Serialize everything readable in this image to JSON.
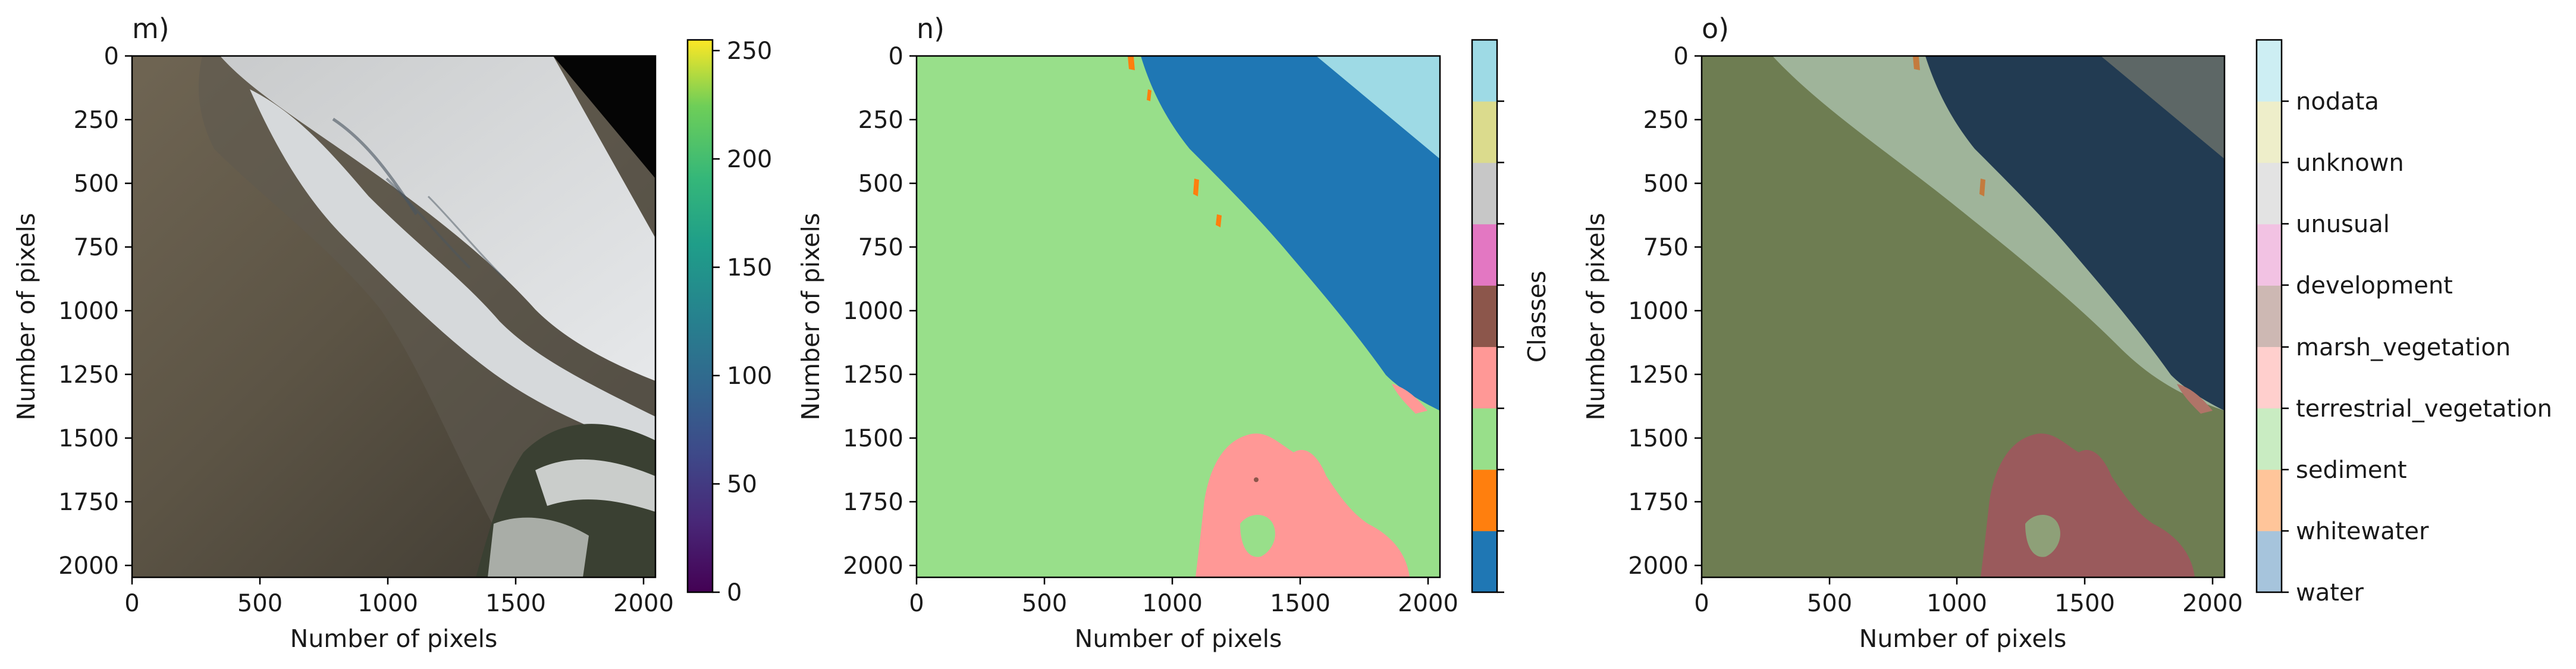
{
  "figure": {
    "panels": [
      {
        "title": "m)",
        "xlabel": "Number of pixels",
        "ylabel": "Number of pixels",
        "xticks": [
          "0",
          "500",
          "1000",
          "1500",
          "2000"
        ],
        "yticks": [
          "0",
          "250",
          "500",
          "750",
          "1000",
          "1250",
          "1500",
          "1750",
          "2000"
        ]
      },
      {
        "title": "n)",
        "xlabel": "Number of pixels",
        "ylabel": "Number of pixels",
        "xticks": [
          "0",
          "500",
          "1000",
          "1500",
          "2000"
        ],
        "yticks": [
          "0",
          "250",
          "500",
          "750",
          "1000",
          "1250",
          "1500",
          "1750",
          "2000"
        ]
      },
      {
        "title": "o)",
        "xlabel": "Number of pixels",
        "ylabel": "Number of pixels",
        "xticks": [
          "0",
          "500",
          "1000",
          "1500",
          "2000"
        ],
        "yticks": [
          "0",
          "250",
          "500",
          "750",
          "1000",
          "1250",
          "1500",
          "1750",
          "2000"
        ]
      }
    ],
    "colorbar_m": {
      "ticks": [
        "0",
        "50",
        "100",
        "150",
        "200",
        "250"
      ]
    },
    "colorbar_n": {
      "label": "Classes"
    },
    "colorbar_o": {
      "labels": [
        "water",
        "whitewater",
        "sediment",
        "terrestrial_vegetation",
        "marsh_vegetation",
        "development",
        "unusual",
        "unknown",
        "nodata"
      ]
    }
  },
  "chart_data": [
    {
      "type": "heatmap",
      "title": "m)",
      "content": "RGB image",
      "xlabel": "Number of pixels",
      "ylabel": "Number of pixels",
      "xlim": [
        0,
        2048
      ],
      "ylim": [
        2048,
        0
      ],
      "xticks": [
        0,
        500,
        1000,
        1500,
        2000
      ],
      "yticks": [
        0,
        250,
        500,
        750,
        1000,
        1250,
        1500,
        1750,
        2000
      ],
      "colorbar": {
        "colormap": "viridis",
        "range": [
          0,
          255
        ],
        "ticks": [
          0,
          50,
          100,
          150,
          200,
          250
        ]
      }
    },
    {
      "type": "heatmap",
      "title": "n)",
      "content": "class label map",
      "xlabel": "Number of pixels",
      "ylabel": "Number of pixels",
      "xlim": [
        0,
        2048
      ],
      "ylim": [
        2048,
        0
      ],
      "xticks": [
        0,
        500,
        1000,
        1500,
        2000
      ],
      "yticks": [
        0,
        250,
        500,
        750,
        1000,
        1250,
        1500,
        1750,
        2000
      ],
      "colorbar": {
        "label": "Classes",
        "classes": [
          "water",
          "whitewater",
          "sediment",
          "terrestrial_vegetation",
          "marsh_vegetation",
          "development",
          "unusual",
          "unknown",
          "nodata"
        ],
        "colors": [
          "#1f77b4",
          "#ff7f0e",
          "#98df8a",
          "#ff9896",
          "#8c564b",
          "#e377c2",
          "#c7c7c7",
          "#dbdb8d",
          "#9edae5"
        ]
      }
    },
    {
      "type": "heatmap",
      "title": "o)",
      "content": "RGB image with semi-transparent class overlay",
      "xlabel": "Number of pixels",
      "ylabel": "Number of pixels",
      "xlim": [
        0,
        2048
      ],
      "ylim": [
        2048,
        0
      ],
      "xticks": [
        0,
        500,
        1000,
        1500,
        2000
      ],
      "yticks": [
        0,
        250,
        500,
        750,
        1000,
        1250,
        1500,
        1750,
        2000
      ],
      "colorbar": {
        "labels": [
          "water",
          "whitewater",
          "sediment",
          "terrestrial_vegetation",
          "marsh_vegetation",
          "development",
          "unusual",
          "unknown",
          "nodata"
        ],
        "colors": [
          "#a6c4dc",
          "#ffc59a",
          "#c9ecc2",
          "#ffcfcd",
          "#cdb8b3",
          "#f2c2e3",
          "#e3e3e3",
          "#eeeeca",
          "#cdeef3"
        ]
      }
    }
  ]
}
